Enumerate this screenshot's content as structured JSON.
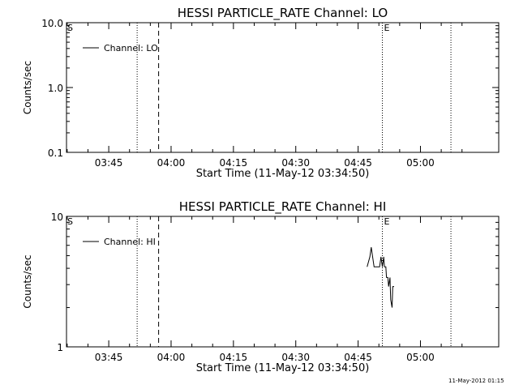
{
  "chart_data": [
    {
      "type": "line",
      "title": "HESSI PARTICLE_RATE Channel: LO",
      "xlabel": "Start Time (11-May-12 03:34:50)",
      "ylabel": "Counts/sec",
      "yscale": "log",
      "ylim": [
        0.1,
        10.0
      ],
      "xlim": [
        "03:34:50",
        "05:18:50"
      ],
      "x_ticks": [
        "03:45",
        "04:00",
        "04:15",
        "04:30",
        "04:45",
        "05:00"
      ],
      "y_ticks": [
        "0.1",
        "1.0",
        "10.0"
      ],
      "legend": {
        "label": "Channel: LO",
        "position": "top-left"
      },
      "markers": [
        {
          "label": "S",
          "time": "03:34:50",
          "style": "none"
        },
        {
          "label": "",
          "time": "03:51:50",
          "style": "dotted"
        },
        {
          "label": "",
          "time": "03:57:00",
          "style": "dashed"
        },
        {
          "label": "E",
          "time": "04:50:50",
          "style": "dotted"
        },
        {
          "label": "",
          "time": "05:07:20",
          "style": "dotted"
        }
      ],
      "series": [
        {
          "name": "Channel: LO",
          "x": [],
          "y": []
        }
      ]
    },
    {
      "type": "line",
      "title": "HESSI PARTICLE_RATE Channel: HI",
      "xlabel": "Start Time (11-May-12 03:34:50)",
      "ylabel": "Counts/sec",
      "yscale": "log",
      "ylim": [
        1,
        10
      ],
      "xlim": [
        "03:34:50",
        "05:18:50"
      ],
      "x_ticks": [
        "03:45",
        "04:00",
        "04:15",
        "04:30",
        "04:45",
        "05:00"
      ],
      "y_ticks": [
        "1",
        "10"
      ],
      "legend": {
        "label": "Channel: HI",
        "position": "top-left"
      },
      "markers": [
        {
          "label": "S",
          "time": "03:34:50",
          "style": "none"
        },
        {
          "label": "",
          "time": "03:51:50",
          "style": "dotted"
        },
        {
          "label": "",
          "time": "03:57:00",
          "style": "dashed"
        },
        {
          "label": "E",
          "time": "04:50:50",
          "style": "dotted"
        },
        {
          "label": "",
          "time": "05:07:20",
          "style": "dotted"
        }
      ],
      "series": [
        {
          "name": "Channel: HI",
          "x": [
            "04:47:10",
            "04:47:50",
            "04:48:10",
            "04:48:30",
            "04:48:50",
            "04:49:10",
            "04:49:30",
            "04:49:50",
            "04:50:10",
            "04:50:30",
            "04:50:50",
            "04:51:10",
            "04:51:20",
            "04:51:40",
            "04:51:50",
            "04:52:10",
            "04:52:20",
            "04:52:40",
            "04:52:50",
            "04:53:10",
            "04:53:20",
            "04:53:40"
          ],
          "y": [
            4.1,
            4.9,
            5.8,
            4.9,
            4.1,
            4.1,
            4.1,
            4.1,
            4.1,
            4.9,
            4.1,
            4.9,
            4.1,
            4.1,
            3.4,
            3.4,
            2.9,
            3.4,
            2.3,
            2.0,
            2.9,
            2.9
          ]
        }
      ]
    }
  ],
  "footer": {
    "timestamp": "11-May-2012 01:15"
  }
}
